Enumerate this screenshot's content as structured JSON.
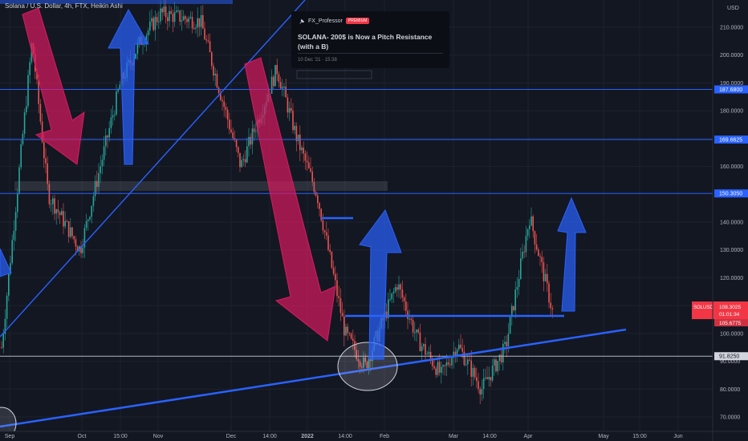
{
  "header": {
    "title": "Solana / U.S. Dollar, 4h, FTX, Heikin Ashi"
  },
  "popup": {
    "author": "FX_Professor",
    "badge": "PREMIUM",
    "headline": "SOLANA- 200$ is Now a Pitch Resistance (with a B)",
    "date": "10 Dec '21 · 15:38",
    "icon": "author-pin-icon"
  },
  "colors": {
    "background": "#131722",
    "grid": "#1e222d",
    "up_candle": "#26a69a",
    "down_candle": "#ef5350",
    "trendline": "#2962ff",
    "level_line": "#2962ff",
    "support_line": "#b2b5be",
    "red_arrow": "#d81b60",
    "blue_arrow": "#2962ff",
    "price_label": "#f23645"
  },
  "chart_data": {
    "type": "candlestick",
    "title": "Solana / U.S. Dollar, 4h, FTX, Heikin Ashi",
    "y_unit": "USD",
    "ylim": [
      65,
      215
    ],
    "y_ticks": [
      {
        "value": 70,
        "label": "70.0000"
      },
      {
        "value": 80,
        "label": "80.0000"
      },
      {
        "value": 90,
        "label": "90.0000"
      },
      {
        "value": 100,
        "label": "100.0000"
      },
      {
        "value": 110,
        "label": "110.0000"
      },
      {
        "value": 120,
        "label": "120.0000"
      },
      {
        "value": 130,
        "label": "130.0000"
      },
      {
        "value": 140,
        "label": "140.0000"
      },
      {
        "value": 160,
        "label": "160.0000"
      },
      {
        "value": 170,
        "label": "170.0000"
      },
      {
        "value": 180,
        "label": "180.0000"
      },
      {
        "value": 190,
        "label": "190.0000"
      },
      {
        "value": 200,
        "label": "200.0000"
      },
      {
        "value": 210,
        "label": "210.0000"
      }
    ],
    "x_ticks": [
      "Sep",
      "Oct",
      "15:00",
      "Nov",
      "Dec",
      "14:00",
      "2022",
      "14:00",
      "Feb",
      "Mar",
      "14:00",
      "Apr",
      "May",
      "15:00",
      "Jun"
    ],
    "levels": [
      {
        "value": 187.68,
        "label": "187.6800",
        "style": "blue"
      },
      {
        "value": 169.6625,
        "label": "169.6625",
        "style": "blue"
      },
      {
        "value": 150.305,
        "label": "150.3050",
        "style": "blue"
      },
      {
        "value": 91.825,
        "label": "91.8250",
        "style": "gray"
      }
    ],
    "current_price": {
      "symbol": "SOLUSD",
      "price": "108.3025",
      "countdown": "01:01:34",
      "secondary": "105.6775"
    },
    "candles_approx": [
      {
        "t": "Aug late",
        "close": 95
      },
      {
        "t": "Sep",
        "close": 160
      },
      {
        "t": "Sep mid",
        "close": 205
      },
      {
        "t": "Sep late",
        "close": 140
      },
      {
        "t": "Oct",
        "close": 150
      },
      {
        "t": "Oct mid",
        "close": 200
      },
      {
        "t": "Nov",
        "close": 230
      },
      {
        "t": "Nov mid",
        "close": 215
      },
      {
        "t": "Dec",
        "close": 165
      },
      {
        "t": "Dec mid",
        "close": 190
      },
      {
        "t": "Dec late",
        "close": 170
      },
      {
        "t": "2022",
        "close": 145
      },
      {
        "t": "Jan mid",
        "close": 100
      },
      {
        "t": "Jan late",
        "close": 90
      },
      {
        "t": "Feb",
        "close": 115
      },
      {
        "t": "Feb mid",
        "close": 95
      },
      {
        "t": "Feb late",
        "close": 85
      },
      {
        "t": "Mar",
        "close": 95
      },
      {
        "t": "Mar mid",
        "close": 80
      },
      {
        "t": "Mar late",
        "close": 95
      },
      {
        "t": "Apr",
        "close": 140
      },
      {
        "t": "Apr mid",
        "close": 108
      }
    ]
  }
}
